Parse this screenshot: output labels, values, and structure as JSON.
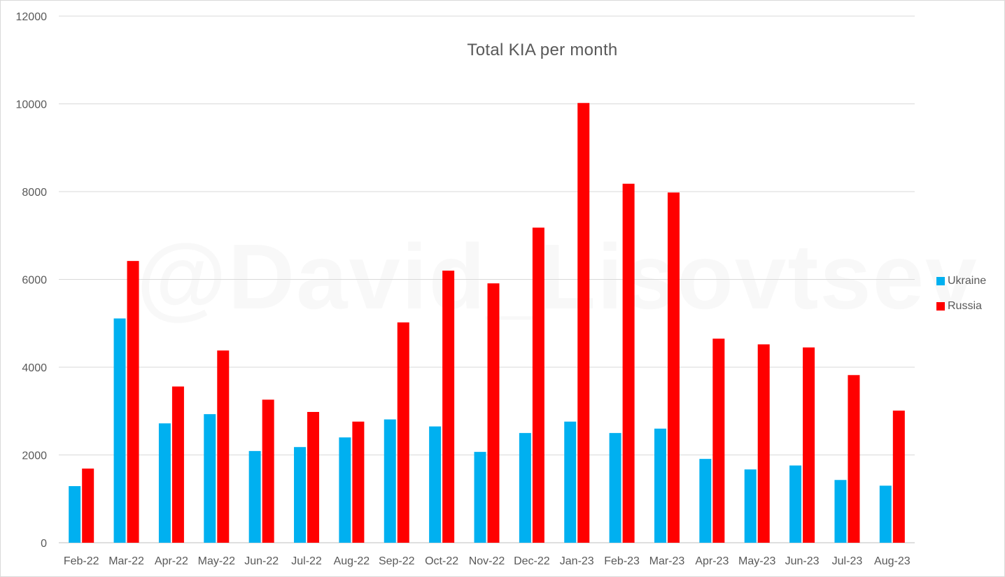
{
  "chart_data": {
    "type": "bar",
    "title": "Total KIA per month",
    "watermark": "@David_Lisovtsev",
    "categories": [
      "Feb-22",
      "Mar-22",
      "Apr-22",
      "May-22",
      "Jun-22",
      "Jul-22",
      "Aug-22",
      "Sep-22",
      "Oct-22",
      "Nov-22",
      "Dec-22",
      "Jan-23",
      "Feb-23",
      "Mar-23",
      "Apr-23",
      "May-23",
      "Jun-23",
      "Jul-23",
      "Aug-23"
    ],
    "series": [
      {
        "name": "Ukraine",
        "color": "#00b0f0",
        "values": [
          1290,
          5110,
          2720,
          2930,
          2090,
          2180,
          2400,
          2810,
          2650,
          2070,
          2500,
          2760,
          2500,
          2600,
          1910,
          1670,
          1760,
          1430,
          1300
        ]
      },
      {
        "name": "Russia",
        "color": "#ff0000",
        "values": [
          1690,
          6420,
          3560,
          4380,
          3260,
          2980,
          2760,
          5020,
          6200,
          5910,
          7180,
          10020,
          8180,
          7980,
          4650,
          4520,
          4450,
          3820,
          3010
        ]
      }
    ],
    "yticks": [
      "0",
      "2000",
      "4000",
      "6000",
      "8000",
      "10000",
      "12000"
    ],
    "ylim": [
      0,
      12000
    ],
    "grid": true,
    "legend_position": "right"
  }
}
